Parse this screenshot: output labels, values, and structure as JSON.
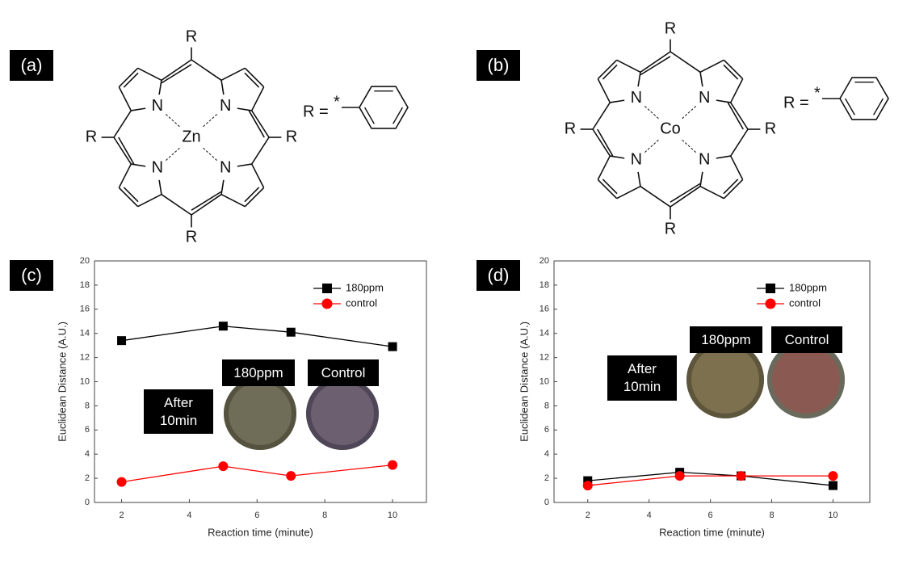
{
  "panel_labels": [
    "(a)",
    "(b)",
    "(c)",
    "(d)"
  ],
  "structures": [
    {
      "metal": "Zn",
      "nitrogen": "N",
      "substituent": "R",
      "definition": "R =",
      "attachment": "*"
    },
    {
      "metal": "Co",
      "nitrogen": "N",
      "substituent": "R",
      "definition": "R =",
      "attachment": "*"
    }
  ],
  "chart_data": [
    {
      "type": "line",
      "xlabel": "Reaction time (minute)",
      "ylabel": "Euclidean Distance (A.U.)",
      "x": [
        2,
        5,
        7,
        10
      ],
      "xlim": [
        1.2,
        11
      ],
      "xticks": [
        2,
        4,
        6,
        8,
        10
      ],
      "ylim": [
        0,
        20
      ],
      "yticks": [
        0,
        2,
        4,
        6,
        8,
        10,
        12,
        14,
        16,
        18,
        20
      ],
      "legend": "upper right",
      "series": [
        {
          "name": "180ppm",
          "color": "#000000",
          "marker": "square",
          "values": [
            13.4,
            14.6,
            14.1,
            12.9
          ]
        },
        {
          "name": "control",
          "color": "#ff0000",
          "marker": "circle",
          "values": [
            1.7,
            3.0,
            2.2,
            3.1
          ]
        }
      ],
      "annotations": [
        "After 10min",
        "180ppm",
        "Control"
      ]
    },
    {
      "type": "line",
      "xlabel": "Reaction time (minute)",
      "ylabel": "Euclidean Distance (A.U.)",
      "x": [
        2,
        5,
        7,
        10
      ],
      "xlim": [
        0.9,
        11.2
      ],
      "xticks": [
        2,
        4,
        6,
        8,
        10
      ],
      "ylim": [
        0,
        20
      ],
      "yticks": [
        0,
        2,
        4,
        6,
        8,
        10,
        12,
        14,
        16,
        18,
        20
      ],
      "legend": "upper right",
      "series": [
        {
          "name": "180ppm",
          "color": "#000000",
          "marker": "square",
          "values": [
            1.8,
            2.5,
            2.2,
            1.4
          ]
        },
        {
          "name": "control",
          "color": "#ff0000",
          "marker": "circle",
          "values": [
            1.4,
            2.2,
            2.2,
            2.2
          ]
        }
      ],
      "annotations": [
        "After 10min",
        "180ppm",
        "Control"
      ]
    }
  ]
}
